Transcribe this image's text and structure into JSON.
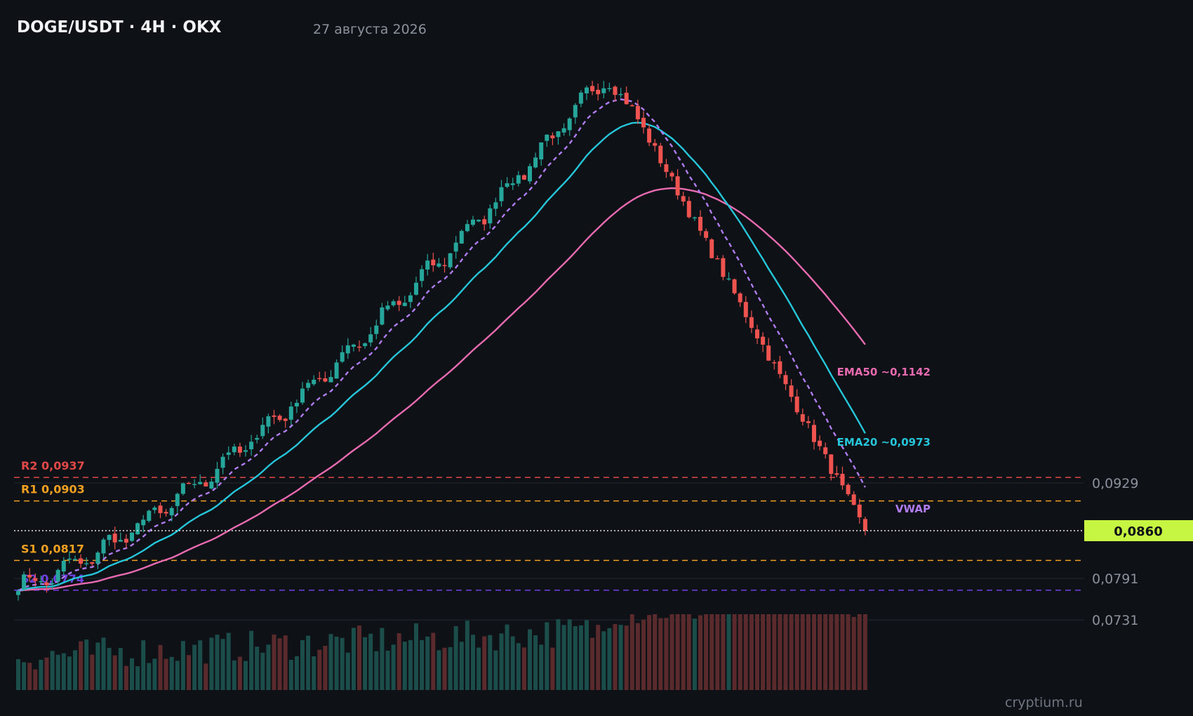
{
  "header": {
    "title": "DOGE/USDT · 4H · OKX",
    "date": "27 августа 2026"
  },
  "watermark": "cryptium.ru",
  "colors": {
    "background": "#0e1116",
    "up": "#26a69a",
    "down": "#ef5350",
    "ema20": "#26c6da",
    "ema50": "#e86ab0",
    "vwap": "#b07cf0",
    "r2": "#e04848",
    "r1": "#f0a020",
    "s1": "#f0a020",
    "s2": "#7040e0",
    "current_price_bg": "#c6f542"
  },
  "chart_data": {
    "type": "candlestick",
    "y_axis_ticks": [
      "0,0929",
      "0,0791",
      "0,0731"
    ],
    "current_price": {
      "value": 0.086,
      "label": "0,0860"
    },
    "levels": [
      {
        "id": "r2",
        "label": "R2 0,0937",
        "value": 0.0937
      },
      {
        "id": "r1",
        "label": "R1 0,0903",
        "value": 0.0903
      },
      {
        "id": "s1",
        "label": "S1 0,0817",
        "value": 0.0817
      },
      {
        "id": "s2",
        "label": "S2 0,0774",
        "value": 0.0774
      }
    ],
    "indicator_labels": {
      "ema50": "EMA50 ~0,1142",
      "ema20": "EMA20 ~0,0973",
      "vwap": "VWAP"
    },
    "trend_description": "uptrend from ~0,0780 to peak ~0,1515, then sharp decline to 0,0860",
    "candle_count": 150,
    "start_price": 0.078,
    "peak_price": 0.1515,
    "end_price": 0.086
  }
}
